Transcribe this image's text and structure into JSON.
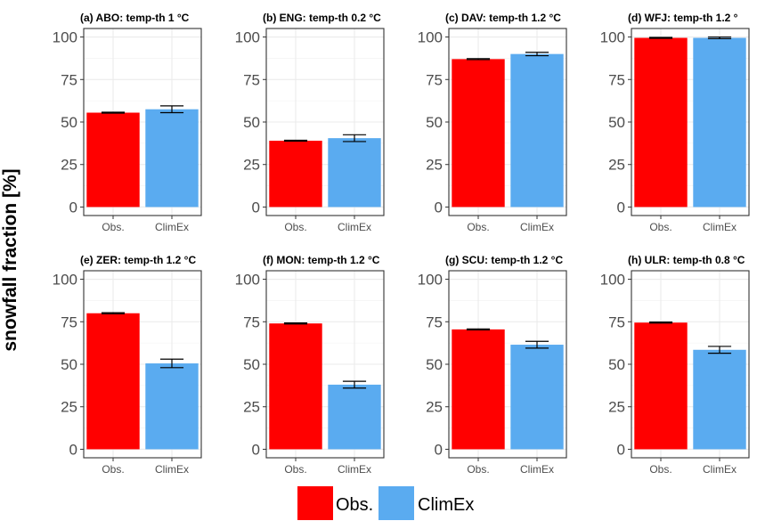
{
  "chart_data": {
    "type": "bar",
    "ylabel": "snowfall fraction [%]",
    "ylim": [
      0,
      100
    ],
    "yticks": [
      0,
      25,
      50,
      75,
      100
    ],
    "categories": [
      "Obs.",
      "ClimEx"
    ],
    "colors": {
      "Obs.": "#ff0000",
      "ClimEx": "#5aabf0"
    },
    "grid": true,
    "legend": {
      "position": "bottom",
      "entries": [
        "Obs.",
        "ClimEx"
      ]
    },
    "panels": [
      {
        "title": "(a) ABO: temp-th 1 °C",
        "values": [
          55.5,
          57.5
        ],
        "errors": [
          [
            55.2,
            55.8
          ],
          [
            55.5,
            59.5
          ]
        ]
      },
      {
        "title": "(b) ENG: temp-th 0.2 °C",
        "values": [
          39.0,
          40.5
        ],
        "errors": [
          [
            38.7,
            39.3
          ],
          [
            38.5,
            42.5
          ]
        ]
      },
      {
        "title": "(c) DAV: temp-th 1.2 °C",
        "values": [
          87.0,
          90.0
        ],
        "errors": [
          [
            86.7,
            87.3
          ],
          [
            89.0,
            91.0
          ]
        ]
      },
      {
        "title": "(d) WFJ: temp-th 1.2 °",
        "values": [
          99.5,
          99.5
        ],
        "errors": [
          [
            99.2,
            99.8
          ],
          [
            99.0,
            100.0
          ]
        ]
      },
      {
        "title": "(e) ZER: temp-th 1.2 °C",
        "values": [
          80.0,
          50.5
        ],
        "errors": [
          [
            79.7,
            80.3
          ],
          [
            48.0,
            53.0
          ]
        ]
      },
      {
        "title": "(f) MON: temp-th 1.2 °C",
        "values": [
          74.0,
          38.0
        ],
        "errors": [
          [
            73.7,
            74.3
          ],
          [
            36.0,
            40.0
          ]
        ]
      },
      {
        "title": "(g) SCU: temp-th 1.2 °C",
        "values": [
          70.5,
          61.5
        ],
        "errors": [
          [
            70.2,
            70.8
          ],
          [
            59.5,
            63.5
          ]
        ]
      },
      {
        "title": "(h) ULR: temp-th 0.8 °C",
        "values": [
          74.5,
          58.5
        ],
        "errors": [
          [
            74.2,
            74.8
          ],
          [
            56.5,
            60.5
          ]
        ]
      }
    ]
  }
}
